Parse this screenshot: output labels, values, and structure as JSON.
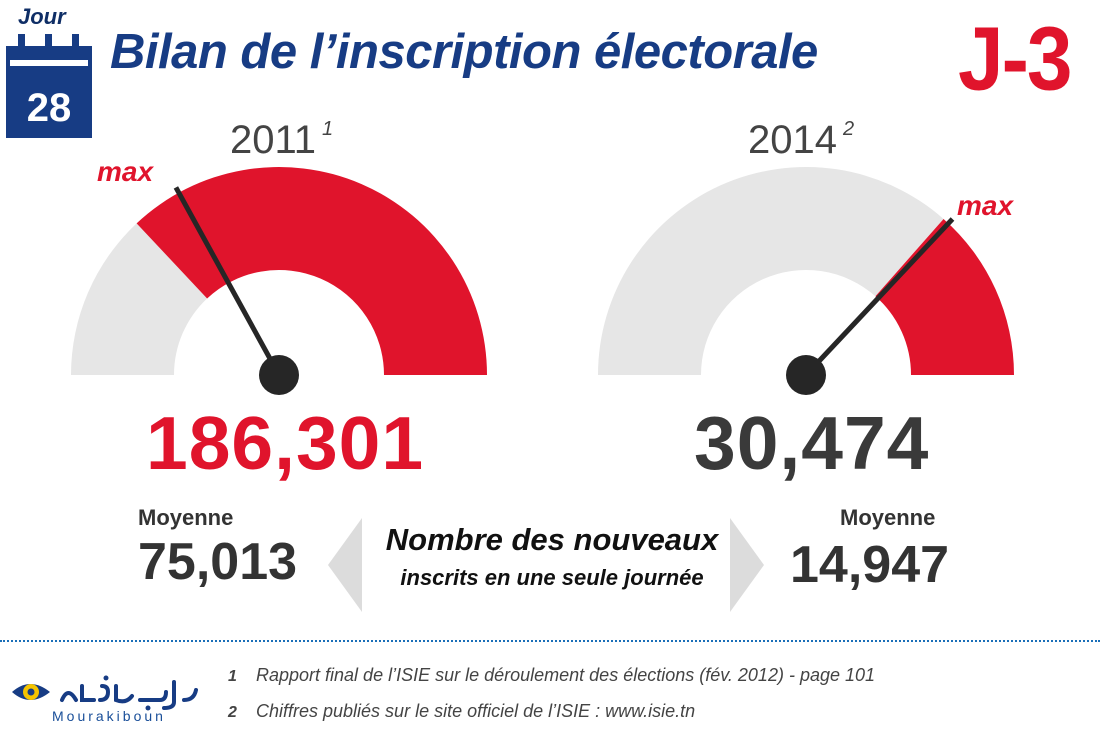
{
  "header": {
    "calendar_label": "Jour",
    "calendar_day": "28",
    "title": "Bilan de l’inscription électorale",
    "countdown": "J-3"
  },
  "colors": {
    "accent_red": "#e0142c",
    "navy": "#173c84",
    "gauge_grey": "#e6e6e6",
    "text_dark": "#333333"
  },
  "chart_data": {
    "type": "gauge",
    "gauges": [
      {
        "year": "2011",
        "footnote_ref": "1",
        "max_label": "max",
        "value": "186,301",
        "value_number": 186301,
        "average_label": "Moyenne",
        "average": "75,013",
        "filled_fraction": 0.74,
        "needle_fraction": 0.34,
        "fill_color": "#e0142c"
      },
      {
        "year": "2014",
        "footnote_ref": "2",
        "max_label": "max",
        "value": "30,474",
        "value_number": 30474,
        "average_label": "Moyenne",
        "average": "14,947",
        "filled_fraction": 0.27,
        "needle_fraction": 0.74,
        "fill_color": "#e0142c"
      }
    ]
  },
  "center_caption": {
    "line1": "Nombre des nouveaux",
    "line2": "inscrits en une seule journée"
  },
  "footer": {
    "logo_name": "Mourakiboun",
    "footnotes": [
      {
        "num": "1",
        "text": "Rapport final de l’ISIE sur le déroulement des élections (fév. 2012) - page 101"
      },
      {
        "num": "2",
        "text": "Chiffres publiés sur le site officiel de l’ISIE : www.isie.tn"
      }
    ]
  }
}
